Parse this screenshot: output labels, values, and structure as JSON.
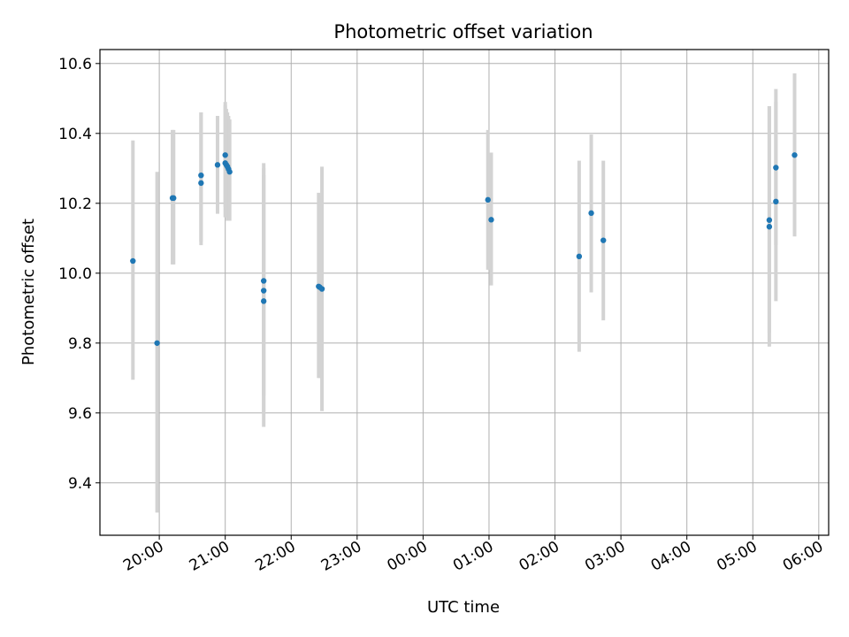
{
  "chart_data": {
    "type": "scatter",
    "title": "Photometric offset variation",
    "xlabel": "UTC time",
    "ylabel": "Photometric offset",
    "x_ticks": [
      {
        "time": "20:00",
        "label": "20:00"
      },
      {
        "time": "21:00",
        "label": "21:00"
      },
      {
        "time": "22:00",
        "label": "22:00"
      },
      {
        "time": "23:00",
        "label": "23:00"
      },
      {
        "time": "00:00",
        "label": "00:00"
      },
      {
        "time": "01:00",
        "label": "01:00"
      },
      {
        "time": "02:00",
        "label": "02:00"
      },
      {
        "time": "03:00",
        "label": "03:00"
      },
      {
        "time": "04:00",
        "label": "04:00"
      },
      {
        "time": "05:00",
        "label": "05:00"
      },
      {
        "time": "06:00",
        "label": "06:00"
      }
    ],
    "y_ticks": [
      9.4,
      9.6,
      9.8,
      10.0,
      10.2,
      10.4,
      10.6
    ],
    "xlim": [
      "19:06",
      "06:09"
    ],
    "ylim": [
      9.25,
      10.64
    ],
    "grid": true,
    "marker_color": "#1f77b4",
    "errorbar_color": "#d3d3d3",
    "points": [
      {
        "time": "19:36",
        "y": 10.035,
        "lo": 9.695,
        "hi": 10.38
      },
      {
        "time": "19:58",
        "y": 9.8,
        "lo": 9.315,
        "hi": 10.29
      },
      {
        "time": "20:12",
        "y": 10.215,
        "lo": 10.025,
        "hi": 10.41
      },
      {
        "time": "20:13",
        "y": 10.215,
        "lo": 10.025,
        "hi": 10.41
      },
      {
        "time": "20:38",
        "y": 10.28,
        "lo": 10.09,
        "hi": 10.46
      },
      {
        "time": "20:38",
        "y": 10.258,
        "lo": 10.08,
        "hi": 10.46
      },
      {
        "time": "20:53",
        "y": 10.31,
        "lo": 10.17,
        "hi": 10.45
      },
      {
        "time": "21:00",
        "y": 10.338,
        "lo": 10.19,
        "hi": 10.49
      },
      {
        "time": "21:00",
        "y": 10.315,
        "lo": 10.16,
        "hi": 10.48
      },
      {
        "time": "21:01",
        "y": 10.31,
        "lo": 10.16,
        "hi": 10.47
      },
      {
        "time": "21:02",
        "y": 10.305,
        "lo": 10.15,
        "hi": 10.46
      },
      {
        "time": "21:03",
        "y": 10.298,
        "lo": 10.15,
        "hi": 10.45
      },
      {
        "time": "21:04",
        "y": 10.29,
        "lo": 10.15,
        "hi": 10.44
      },
      {
        "time": "21:35",
        "y": 9.978,
        "lo": 9.65,
        "hi": 10.315
      },
      {
        "time": "21:35",
        "y": 9.95,
        "lo": 9.6,
        "hi": 10.3
      },
      {
        "time": "21:35",
        "y": 9.92,
        "lo": 9.56,
        "hi": 10.28
      },
      {
        "time": "22:25",
        "y": 9.962,
        "lo": 9.7,
        "hi": 10.23
      },
      {
        "time": "22:26",
        "y": 9.96,
        "lo": 9.7,
        "hi": 10.22
      },
      {
        "time": "22:28",
        "y": 9.955,
        "lo": 9.605,
        "hi": 10.305
      },
      {
        "time": "00:59",
        "y": 10.21,
        "lo": 10.01,
        "hi": 10.41
      },
      {
        "time": "01:02",
        "y": 10.153,
        "lo": 9.965,
        "hi": 10.345
      },
      {
        "time": "02:22",
        "y": 10.048,
        "lo": 9.775,
        "hi": 10.322
      },
      {
        "time": "02:33",
        "y": 10.172,
        "lo": 9.945,
        "hi": 10.397
      },
      {
        "time": "02:44",
        "y": 10.094,
        "lo": 9.865,
        "hi": 10.322
      },
      {
        "time": "05:15",
        "y": 10.152,
        "lo": 9.83,
        "hi": 10.478
      },
      {
        "time": "05:15",
        "y": 10.133,
        "lo": 9.79,
        "hi": 10.478
      },
      {
        "time": "05:21",
        "y": 10.302,
        "lo": 10.08,
        "hi": 10.527
      },
      {
        "time": "05:21",
        "y": 10.205,
        "lo": 9.92,
        "hi": 10.49
      },
      {
        "time": "05:38",
        "y": 10.338,
        "lo": 10.105,
        "hi": 10.572
      }
    ]
  }
}
